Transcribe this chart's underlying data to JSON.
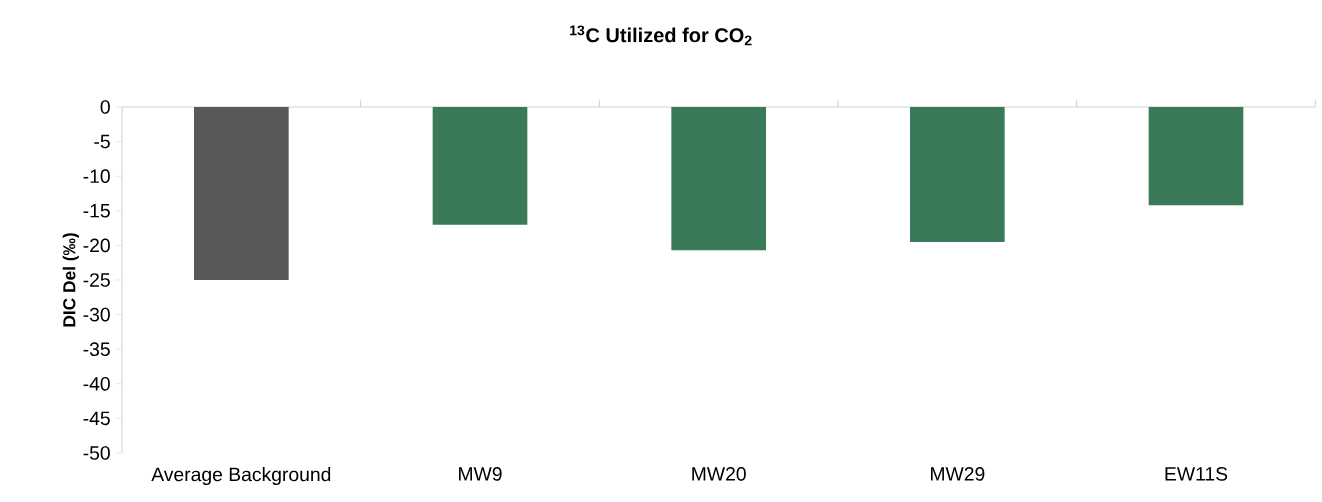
{
  "chart_data": {
    "type": "bar",
    "title": "$^{13}$C Utilized for CO$_{2}$",
    "ylabel": "DIC Del (‰)",
    "categories": [
      "Average Background",
      "MW9",
      "MW20",
      "MW29",
      "EW11S"
    ],
    "values": [
      -25,
      -17,
      -20.7,
      -19.5,
      -14.2
    ],
    "colors": [
      "#595959",
      "#3a7a58",
      "#3a7a58",
      "#3a7a58",
      "#3a7a58"
    ],
    "ylim": [
      -50,
      0
    ],
    "yticks": [
      -50,
      -45,
      -40,
      -35,
      -30,
      -25,
      -20,
      -15,
      -10,
      -5,
      0
    ],
    "grid": false
  }
}
